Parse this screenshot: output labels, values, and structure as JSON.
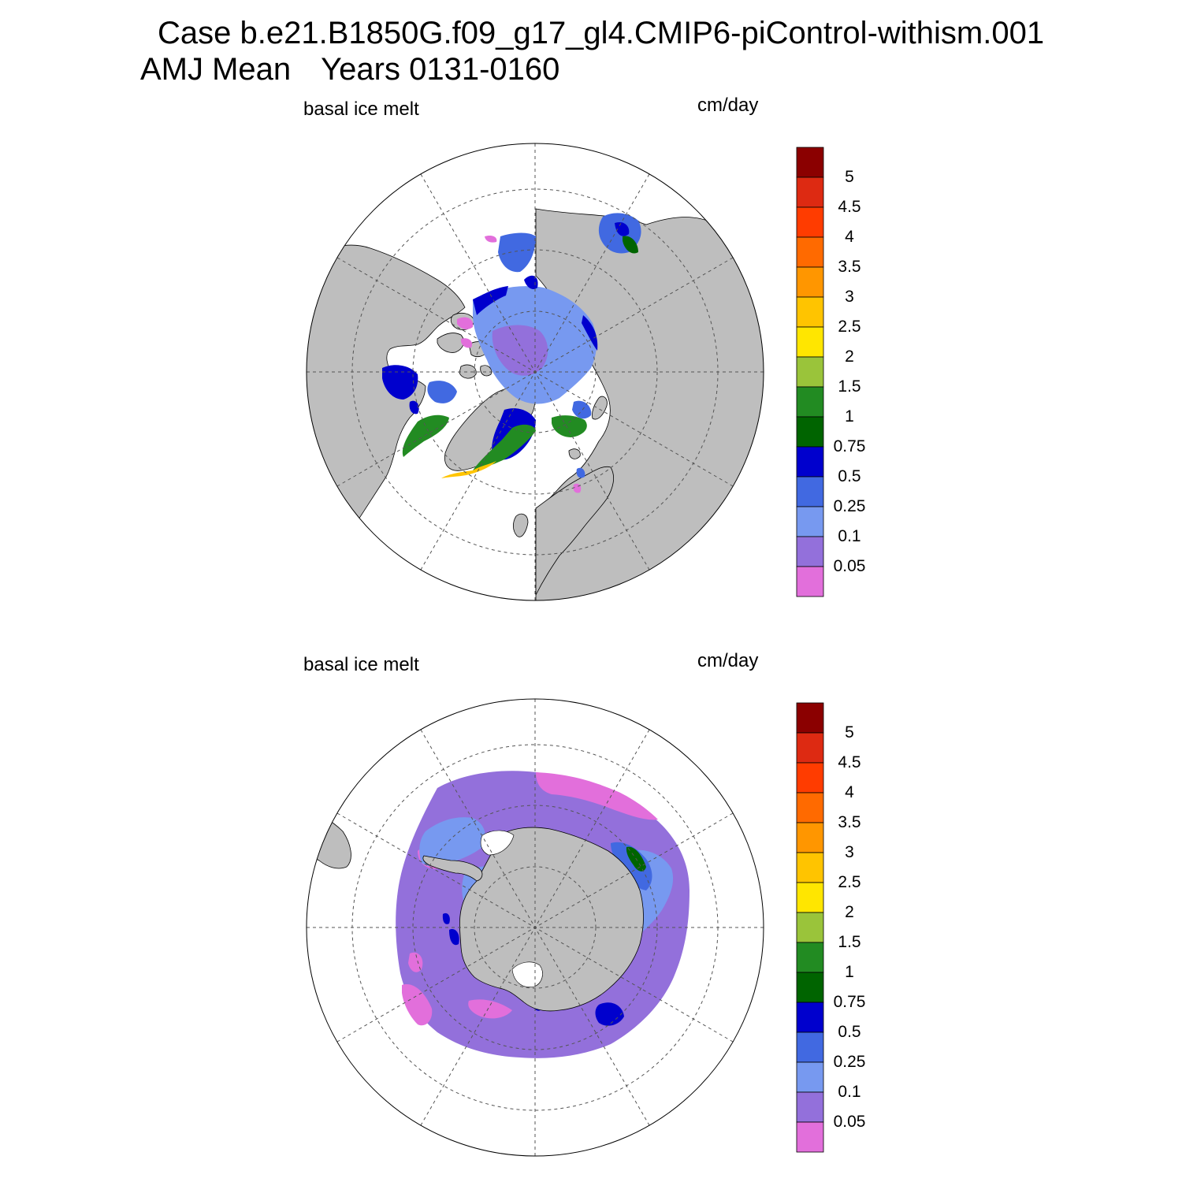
{
  "title": {
    "case_line": "Case b.e21.B1850G.f09_g17_gl4.CMIP6-piControl-withism.001",
    "season": "AMJ Mean",
    "years": "Years 0131-0160"
  },
  "panels": [
    {
      "hemisphere": "north",
      "variable_label": "basal ice melt",
      "units_label": "cm/day"
    },
    {
      "hemisphere": "south",
      "variable_label": "basal ice melt",
      "units_label": "cm/day"
    }
  ],
  "colorbar": {
    "levels": [
      "5",
      "4.5",
      "4",
      "3.5",
      "3",
      "2.5",
      "2",
      "1.5",
      "1",
      "0.75",
      "0.5",
      "0.25",
      "0.1",
      "0.05"
    ],
    "colors_top_to_bottom": [
      "#8b0000",
      "#dd2a12",
      "#ff3c00",
      "#ff6a00",
      "#ff9600",
      "#ffc400",
      "#ffe600",
      "#9ac43a",
      "#228b22",
      "#006400",
      "#0000cd",
      "#4169e1",
      "#7799f0",
      "#9370db",
      "#e26fdb"
    ]
  },
  "colors": {
    "land": "#bebebe",
    "no_data": "#ffffff",
    "grid": "#555555"
  }
}
